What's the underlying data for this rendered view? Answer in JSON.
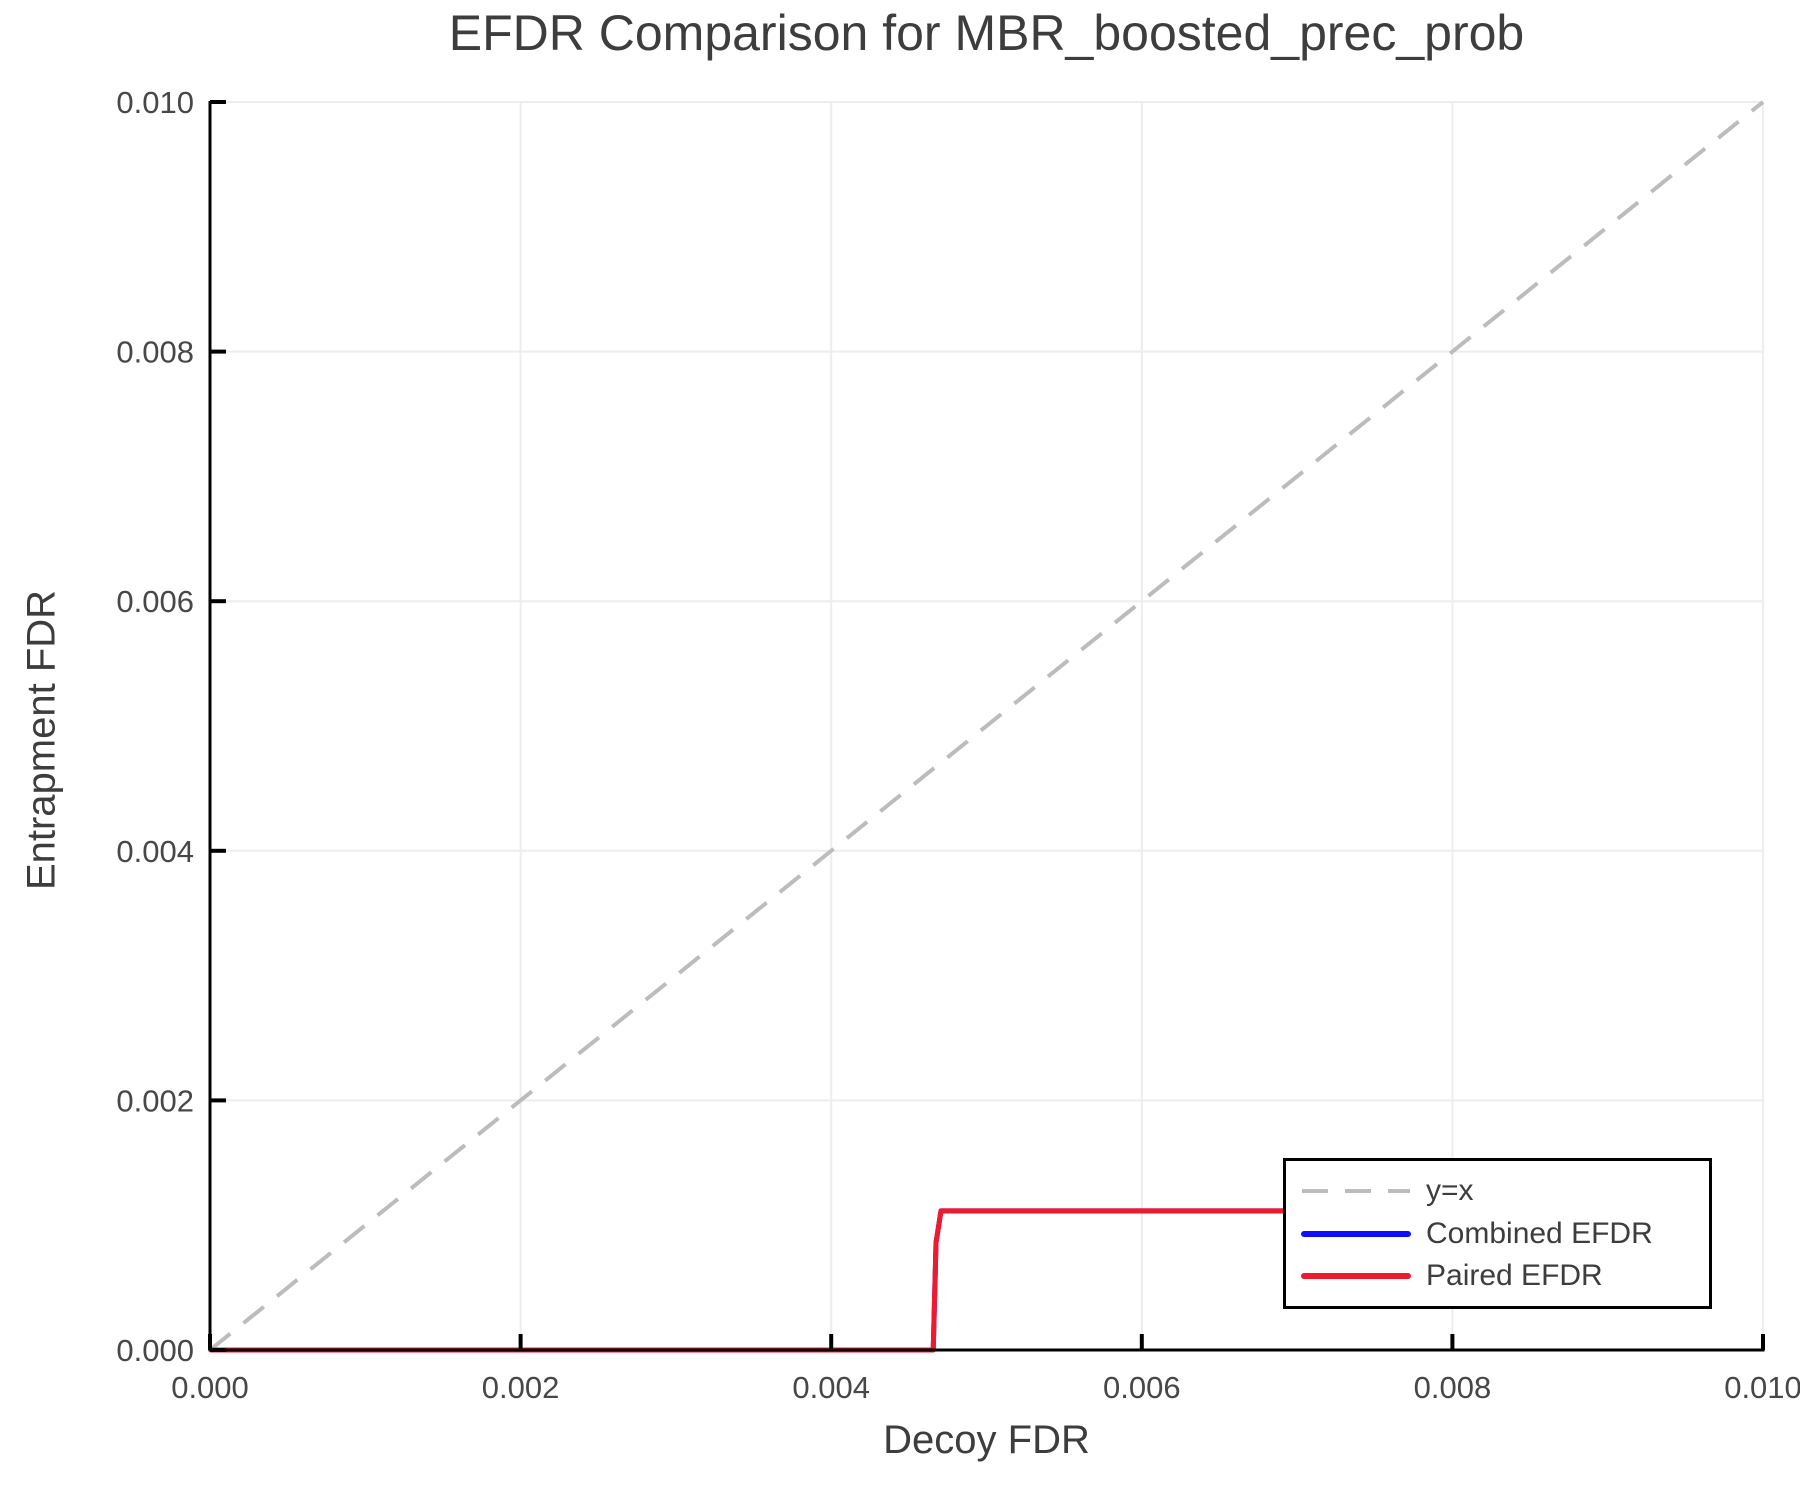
{
  "chart_data": {
    "type": "line",
    "title": "EFDR Comparison for MBR_boosted_prec_prob",
    "xlabel": "Decoy FDR",
    "ylabel": "Entrapment FDR",
    "xlim": [
      0.0,
      0.01
    ],
    "ylim": [
      0.0,
      0.01
    ],
    "xticks": [
      0.0,
      0.002,
      0.004,
      0.006,
      0.008,
      0.01
    ],
    "yticks": [
      0.0,
      0.002,
      0.004,
      0.006,
      0.008,
      0.01
    ],
    "xtick_labels": [
      "0.000",
      "0.002",
      "0.004",
      "0.006",
      "0.008",
      "0.010"
    ],
    "ytick_labels": [
      "0.000",
      "0.002",
      "0.004",
      "0.006",
      "0.008",
      "0.010"
    ],
    "grid": true,
    "legend_position": "lower right",
    "series": [
      {
        "name": "y=x",
        "color": "#bcbcbc",
        "style": "dashed",
        "width": 4,
        "points": [
          [
            0.0,
            0.0
          ],
          [
            0.01,
            0.01
          ]
        ]
      },
      {
        "name": "Combined EFDR",
        "color": "#0d0dff",
        "style": "solid",
        "width": 5,
        "points": [
          [
            0.0,
            0.0
          ],
          [
            0.004657,
            0.0
          ],
          [
            0.004675,
            0.00086
          ],
          [
            0.004707,
            0.001115
          ],
          [
            0.00722,
            0.001115
          ]
        ]
      },
      {
        "name": "Paired EFDR",
        "color": "#ef1a2d",
        "style": "solid",
        "width": 5,
        "points": [
          [
            0.0,
            0.0
          ],
          [
            0.004657,
            0.0
          ],
          [
            0.004675,
            0.00086
          ],
          [
            0.004707,
            0.001115
          ],
          [
            0.00722,
            0.001115
          ]
        ]
      }
    ]
  },
  "style": {
    "grid_color": "#ededed",
    "spine_color": "#000000",
    "tick_color": "#000000",
    "tick_label_color": "#474747",
    "title_color": "#3d3d3d"
  }
}
